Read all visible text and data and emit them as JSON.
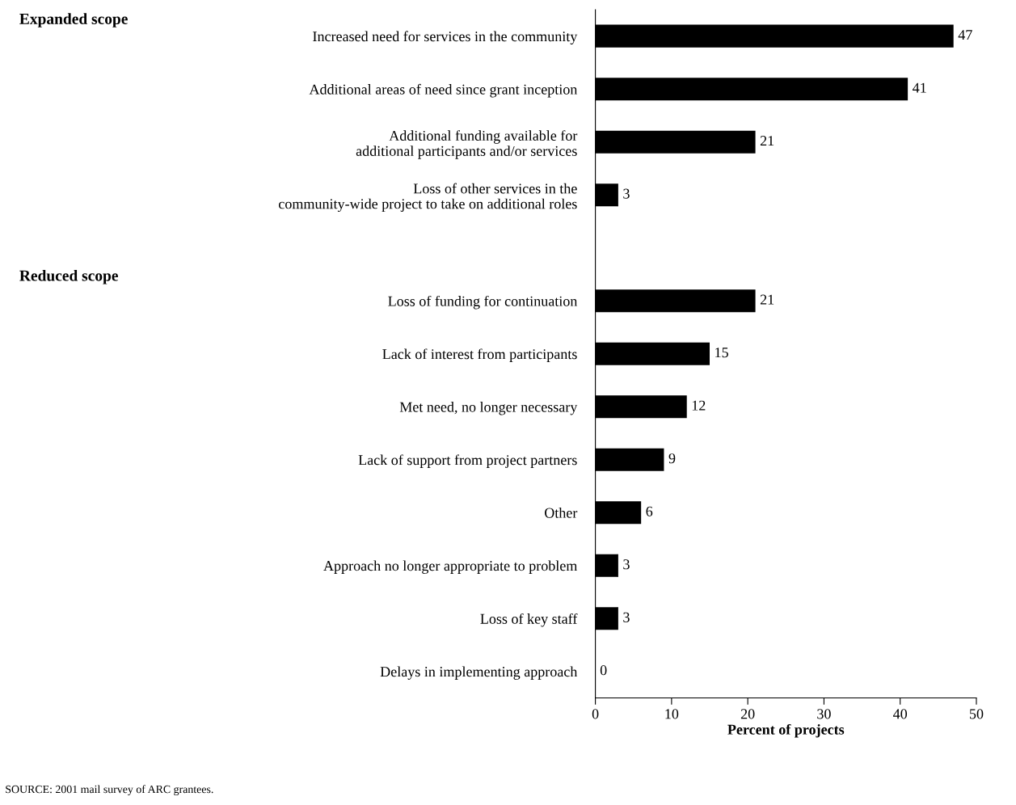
{
  "chart_data": {
    "type": "bar",
    "orientation": "horizontal",
    "xlabel": "Percent of projects",
    "categories": [
      "Increased need for services in the community",
      "Additional areas of need since grant inception",
      "Additional funding available for\nadditional participants and/or services",
      "Loss of other services in the\ncommunity-wide project to take on additional roles",
      null,
      "Loss of funding for continuation",
      "Lack of interest from participants",
      "Met need, no longer necessary",
      "Lack of support from project partners",
      "Other",
      "Approach no longer appropriate to problem",
      "Loss of key staff",
      "Delays in implementing approach"
    ],
    "values": [
      47,
      41,
      21,
      3,
      null,
      21,
      15,
      12,
      9,
      6,
      3,
      3,
      0
    ],
    "color": "#000000",
    "xlim": [
      0,
      50
    ],
    "xticks": [
      0,
      10,
      20,
      30,
      40,
      50
    ],
    "data_labels": true,
    "grid": false,
    "legend": false,
    "annotations": [
      "Expanded scope",
      "Reduced scope",
      "SOURCE: 2001 mail survey of ARC grantees."
    ]
  }
}
